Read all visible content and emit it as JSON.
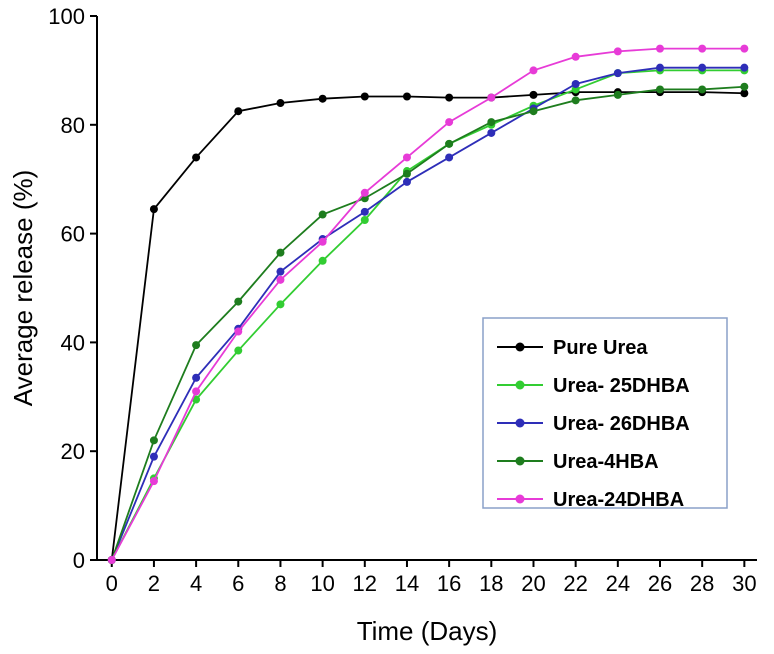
{
  "chart_data": {
    "type": "line",
    "title": "",
    "xlabel": "Time (Days)",
    "ylabel": "Average release (%)",
    "xlim": [
      0,
      30
    ],
    "ylim": [
      0,
      100
    ],
    "xticks": [
      0,
      2,
      4,
      6,
      8,
      10,
      12,
      14,
      16,
      18,
      20,
      22,
      24,
      26,
      28,
      30
    ],
    "yticks": [
      0,
      20,
      40,
      60,
      80,
      100
    ],
    "grid": false,
    "legend_position": "inside-right-middle",
    "x": [
      0,
      2,
      4,
      6,
      8,
      10,
      12,
      14,
      16,
      18,
      20,
      22,
      24,
      26,
      28,
      30
    ],
    "series": [
      {
        "name": "Pure Urea",
        "color": "#000000",
        "values": [
          0,
          64.5,
          74,
          82.5,
          84,
          84.8,
          85.2,
          85.2,
          85,
          85,
          85.5,
          86,
          86,
          86,
          86,
          85.8
        ]
      },
      {
        "name": "Urea- 25DHBA",
        "color": "#32cd32",
        "values": [
          0,
          15,
          29.5,
          38.5,
          47,
          55,
          62.5,
          71.5,
          76.5,
          80,
          83.5,
          86.5,
          89.5,
          90,
          90,
          90
        ]
      },
      {
        "name": "Urea- 26DHBA",
        "color": "#2e2eb8",
        "values": [
          0,
          19,
          33.5,
          42.5,
          53,
          59,
          64,
          69.5,
          74,
          78.5,
          83,
          87.5,
          89.5,
          90.5,
          90.5,
          90.5
        ]
      },
      {
        "name": "Urea-4HBA",
        "color": "#1e7d1e",
        "values": [
          0,
          22,
          39.5,
          47.5,
          56.5,
          63.5,
          66.5,
          71,
          76.5,
          80.5,
          82.5,
          84.5,
          85.5,
          86.5,
          86.5,
          87
        ]
      },
      {
        "name": "Urea-24DHBA",
        "color": "#e73bd7",
        "values": [
          0,
          14.5,
          31,
          42,
          51.5,
          58.5,
          67.5,
          74,
          80.5,
          85,
          90,
          92.5,
          93.5,
          94,
          94,
          94
        ]
      }
    ],
    "legend_border_color": "#8aa0c8",
    "axis_color": "#000000"
  }
}
